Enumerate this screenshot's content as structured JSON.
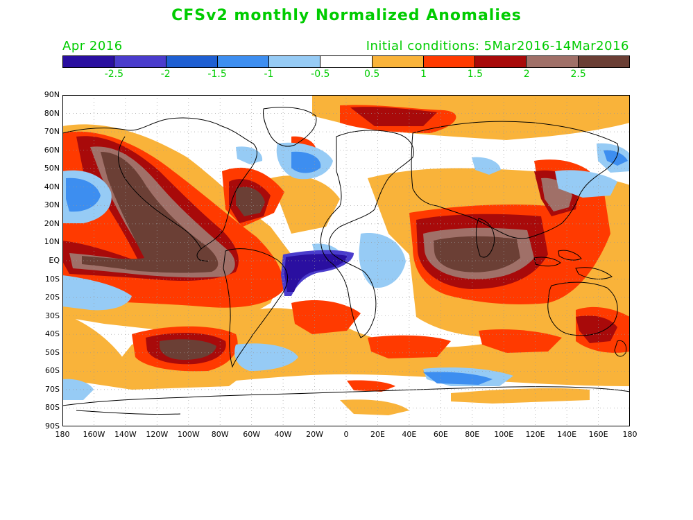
{
  "title": "CFSv2 monthly Normalized Anomalies",
  "month_label": "Apr 2016",
  "init_label": "Initial conditions: 5Mar2016-14Mar2016",
  "text_color": "#00cc00",
  "colorbar": {
    "colors": [
      "#2a0fa0",
      "#4a3ccc",
      "#1e5fd2",
      "#3d8ef0",
      "#96cbf5",
      "#ffffff",
      "#f9b33a",
      "#ff3a00",
      "#a80a0a",
      "#a07068",
      "#6b3f35"
    ],
    "labels": [
      "-2.5",
      "-2",
      "-1.5",
      "-1",
      "-0.5",
      "0.5",
      "1",
      "1.5",
      "2",
      "2.5"
    ]
  },
  "lat_labels": [
    "90N",
    "80N",
    "70N",
    "60N",
    "50N",
    "40N",
    "30N",
    "20N",
    "10N",
    "EQ",
    "10S",
    "20S",
    "30S",
    "40S",
    "50S",
    "60S",
    "70S",
    "80S",
    "90S"
  ],
  "lon_labels": [
    "180",
    "160W",
    "140W",
    "120W",
    "100W",
    "80W",
    "60W",
    "40W",
    "20W",
    "0",
    "20E",
    "40E",
    "60E",
    "80E",
    "100E",
    "120E",
    "140E",
    "160E",
    "180"
  ]
}
